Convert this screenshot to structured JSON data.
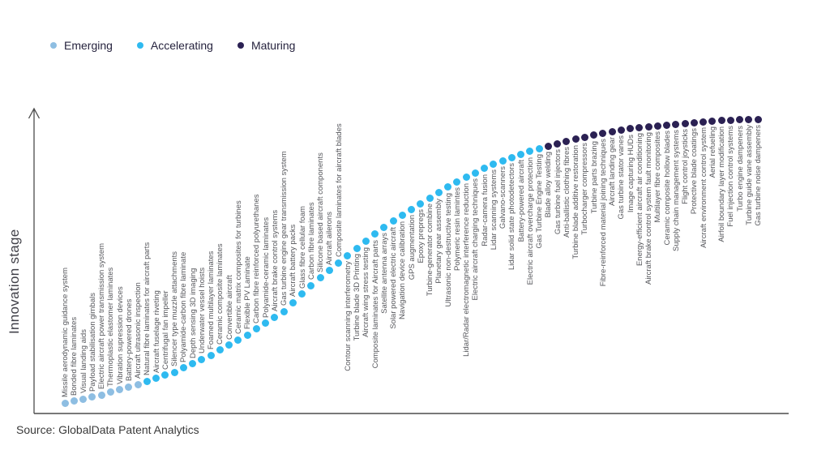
{
  "source": "Source: GlobalData Patent Analytics",
  "colors": {
    "label_text": "#55565B",
    "axis": "#4B4B4B"
  },
  "chart_data": {
    "type": "scatter",
    "title": "",
    "xlabel": "",
    "ylabel": "Innovation stage",
    "legend_position": "top-left",
    "axis_style": "vertical arrow axis, no ticks; items ordered left-to-right along an S-curve of increasing innovation stage",
    "legend": [
      {
        "label": "Emerging",
        "color": "#8EBEE2"
      },
      {
        "label": "Accelerating",
        "color": "#2EBAF0"
      },
      {
        "label": "Maturing",
        "color": "#2B2153"
      }
    ],
    "items": [
      {
        "label": "Missile aerodynamic guidance system",
        "stage": "Emerging"
      },
      {
        "label": "Bonded fibre laminates",
        "stage": "Emerging"
      },
      {
        "label": "Visual landing aids",
        "stage": "Emerging"
      },
      {
        "label": "Payload stabilisation gimbals",
        "stage": "Emerging"
      },
      {
        "label": "Electric aircraft power transmission system",
        "stage": "Emerging"
      },
      {
        "label": "Thermoplastic elastomer laminates",
        "stage": "Emerging"
      },
      {
        "label": "Vibration supression devices",
        "stage": "Emerging"
      },
      {
        "label": "Battery-powered drones",
        "stage": "Emerging"
      },
      {
        "label": "Aircraft ultrasonic inspection",
        "stage": "Emerging"
      },
      {
        "label": "Natural fibre laminates for aircraft parts",
        "stage": "Accelerating"
      },
      {
        "label": "Aircraft fuselage riveting",
        "stage": "Accelerating"
      },
      {
        "label": "Centrifugal fan impeller",
        "stage": "Accelerating"
      },
      {
        "label": "Silencer type muzzle attachments",
        "stage": "Accelerating"
      },
      {
        "label": "Polyamide-carbon fibre laminate",
        "stage": "Accelerating"
      },
      {
        "label": "Depth sensing 3D imaging",
        "stage": "Accelerating"
      },
      {
        "label": "Underwater vessel hoists",
        "stage": "Accelerating"
      },
      {
        "label": "Foamed multilayer laminates",
        "stage": "Accelerating"
      },
      {
        "label": "Ceramic composite laminates",
        "stage": "Accelerating"
      },
      {
        "label": "Convertible aircraft",
        "stage": "Accelerating"
      },
      {
        "label": "Ceramic matrix composites for turbines",
        "stage": "Accelerating"
      },
      {
        "label": "Flexible PV Laminate",
        "stage": "Accelerating"
      },
      {
        "label": "Carbon fibre reinforced polyurethanes",
        "stage": "Accelerating"
      },
      {
        "label": "Polyamide-ceramic laminates",
        "stage": "Accelerating"
      },
      {
        "label": "Aircraft brake control systems",
        "stage": "Accelerating"
      },
      {
        "label": "Gas turbine engine gear transmission system",
        "stage": "Accelerating"
      },
      {
        "label": "Aircraft battery packs",
        "stage": "Accelerating"
      },
      {
        "label": "Glass fibre cellular foam",
        "stage": "Accelerating"
      },
      {
        "label": "Carbon fibre laminates",
        "stage": "Accelerating"
      },
      {
        "label": "Silicone based aircraft components",
        "stage": "Accelerating"
      },
      {
        "label": "Aircraft ailerons",
        "stage": "Accelerating"
      },
      {
        "label": "Composite laminates for aircraft blades",
        "stage": "Accelerating"
      },
      {
        "label": "Contour scanning interferometry",
        "stage": "Accelerating"
      },
      {
        "label": "Turbine blade 3D Printing",
        "stage": "Accelerating"
      },
      {
        "label": "Aircraft wing stress testing",
        "stage": "Accelerating"
      },
      {
        "label": "Composite laminates for Aircraft parts",
        "stage": "Accelerating"
      },
      {
        "label": "Satellite antenna arrays",
        "stage": "Accelerating"
      },
      {
        "label": "Solar powered electric aircraft",
        "stage": "Accelerating"
      },
      {
        "label": "Navigation device calibration",
        "stage": "Accelerating"
      },
      {
        "label": "GPS augmentation",
        "stage": "Accelerating"
      },
      {
        "label": "Epoxy prepregs",
        "stage": "Accelerating"
      },
      {
        "label": "Turbine-generator combine",
        "stage": "Accelerating"
      },
      {
        "label": "Planetary gear assembly",
        "stage": "Accelerating"
      },
      {
        "label": "Ultrasonic non-destructive testing",
        "stage": "Accelerating"
      },
      {
        "label": "Polymeric resin lamintes",
        "stage": "Accelerating"
      },
      {
        "label": "Lidar/Radar electromagnetic interference reduction",
        "stage": "Accelerating"
      },
      {
        "label": "Electric aircraft charging techniques",
        "stage": "Accelerating"
      },
      {
        "label": "Radar-camera fusion",
        "stage": "Accelerating"
      },
      {
        "label": "Lidar scanning systems",
        "stage": "Accelerating"
      },
      {
        "label": "Galvano-scanners",
        "stage": "Accelerating"
      },
      {
        "label": "Lidar solid state photodetectors",
        "stage": "Accelerating"
      },
      {
        "label": "Battery-powered aircraft",
        "stage": "Accelerating"
      },
      {
        "label": "Electric aircraft overcharge protection",
        "stage": "Accelerating"
      },
      {
        "label": "Gas Turbine Engine Testing",
        "stage": "Accelerating"
      },
      {
        "label": "Blade alloy welding",
        "stage": "Maturing"
      },
      {
        "label": "Gas turbine fuel injectors",
        "stage": "Maturing"
      },
      {
        "label": "Anti-ballistic clothing fibres",
        "stage": "Maturing"
      },
      {
        "label": "Turbine blade additive restoration",
        "stage": "Maturing"
      },
      {
        "label": "Turbocharger compressors",
        "stage": "Maturing"
      },
      {
        "label": "Turbine parts brazing",
        "stage": "Maturing"
      },
      {
        "label": "Fibre-reinforced material joining techniques",
        "stage": "Maturing"
      },
      {
        "label": "Aircraft landing gear",
        "stage": "Maturing"
      },
      {
        "label": "Gas turbine stator vanes",
        "stage": "Maturing"
      },
      {
        "label": "Image capturing HUDs",
        "stage": "Maturing"
      },
      {
        "label": "Energy-efficient aircraft air conditioning",
        "stage": "Maturing"
      },
      {
        "label": "Aircraft brake control system fault monitoring",
        "stage": "Maturing"
      },
      {
        "label": "Multilayer fibre composites",
        "stage": "Maturing"
      },
      {
        "label": "Ceramic composite hollow blades",
        "stage": "Maturing"
      },
      {
        "label": "Supply chain management systems",
        "stage": "Maturing"
      },
      {
        "label": "Flight control joysticks",
        "stage": "Maturing"
      },
      {
        "label": "Protective blade coatings",
        "stage": "Maturing"
      },
      {
        "label": "Aircraft environment control system",
        "stage": "Maturing"
      },
      {
        "label": "Aerial refueling",
        "stage": "Maturing"
      },
      {
        "label": "Airfoil boundary layer modification",
        "stage": "Maturing"
      },
      {
        "label": "Fuel injection control systems",
        "stage": "Maturing"
      },
      {
        "label": "Turbo engine dampeners",
        "stage": "Maturing"
      },
      {
        "label": "Turbine guide vane assembly",
        "stage": "Maturing"
      },
      {
        "label": "Gas turbine noise dampeners",
        "stage": "Maturing"
      }
    ]
  }
}
